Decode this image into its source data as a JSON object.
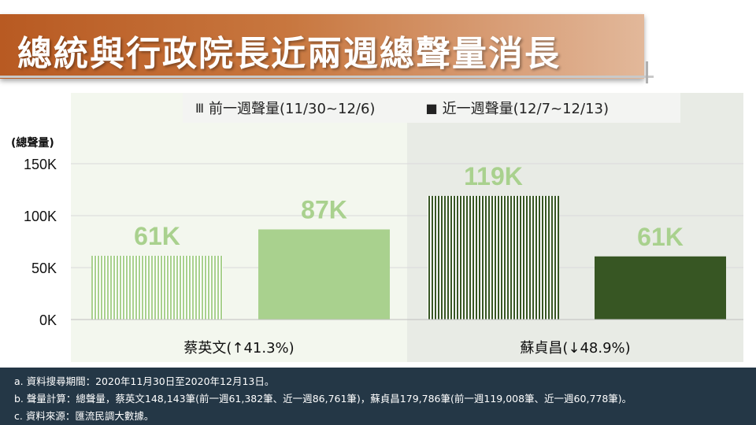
{
  "title": "總統與行政院長近兩週總聲量消長",
  "legend": {
    "prev": "前一週聲量(11/30~12/6)",
    "curr": "近一週聲量(12/7~12/13)",
    "prev_icon": "Ⅲ",
    "curr_icon": "■"
  },
  "chart_data": {
    "type": "bar",
    "ylabel": "(總聲量)",
    "ylim": [
      0,
      150000
    ],
    "yticks": [
      0,
      50000,
      100000,
      150000
    ],
    "ytick_labels": [
      "0K",
      "50K",
      "100K",
      "150K"
    ],
    "groups": [
      {
        "label": "蔡英文(↑41.3%)",
        "bars": [
          {
            "series": "前一週聲量(11/30~12/6)",
            "value": 61382,
            "label": "61K",
            "pattern": "stripe",
            "color": "#a9d18e"
          },
          {
            "series": "近一週聲量(12/7~12/13)",
            "value": 86761,
            "label": "87K",
            "pattern": "solid",
            "color": "#a9d18e"
          }
        ]
      },
      {
        "label": "蘇貞昌(↓48.9%)",
        "bars": [
          {
            "series": "前一週聲量(11/30~12/6)",
            "value": 119008,
            "label": "119K",
            "pattern": "stripe",
            "color": "#375623"
          },
          {
            "series": "近一週聲量(12/7~12/13)",
            "value": 60778,
            "label": "61K",
            "pattern": "solid",
            "color": "#375623"
          }
        ]
      }
    ],
    "data_label_color": "#a9d18e"
  },
  "footnote": {
    "a": "a. 資料搜尋期間：2020年11月30日至2020年12月13日。",
    "b": "b. 聲量計算：總聲量，蔡英文148,143筆(前一週61,382筆、近一週86,761筆)，蘇貞昌179,786筆(前一週119,008筆、近一週60,778筆)。",
    "c": "c. 資料來源：匯流民調大數據。"
  }
}
